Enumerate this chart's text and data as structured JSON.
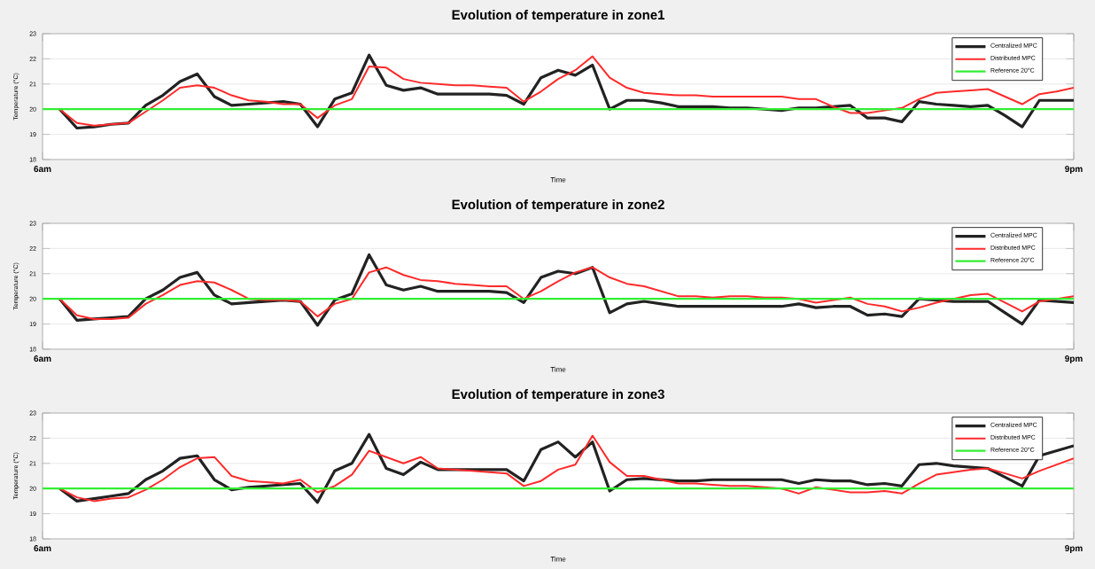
{
  "chart_data": [
    {
      "type": "line",
      "title": "Evolution of temperature in zone1",
      "xlabel": "Time",
      "ylabel": "Temperature (°C)",
      "ylim": [
        18,
        23
      ],
      "yticks": [
        18,
        19,
        20,
        21,
        22,
        23
      ],
      "grid": true,
      "legend": "top right",
      "marker": "none",
      "categories": [
        "6am",
        null,
        null,
        null,
        null,
        null,
        null,
        null,
        null,
        null,
        null,
        null,
        null,
        null,
        null,
        null,
        null,
        null,
        null,
        null,
        null,
        null,
        null,
        null,
        null,
        null,
        null,
        null,
        null,
        null,
        null,
        null,
        null,
        null,
        null,
        null,
        null,
        null,
        null,
        null,
        null,
        null,
        null,
        null,
        null,
        null,
        null,
        null,
        null,
        null,
        null,
        null,
        null,
        null,
        null,
        null,
        null,
        null,
        null,
        null,
        "9pm"
      ],
      "series": [
        {
          "name": "Centralized MPC",
          "color": "#222222",
          "values": [
            null,
            20,
            19.25,
            19.3,
            19.4,
            19.45,
            20.15,
            20.55,
            21.1,
            21.4,
            20.5,
            20.15,
            20.2,
            20.25,
            20.3,
            20.2,
            19.3,
            20.4,
            20.65,
            22.15,
            20.95,
            20.75,
            20.85,
            20.6,
            20.6,
            20.6,
            20.6,
            20.55,
            20.2,
            21.25,
            21.55,
            21.35,
            21.75,
            20,
            20.35,
            20.35,
            20.25,
            20.1,
            20.1,
            20.1,
            20.05,
            20.05,
            20,
            19.95,
            20.05,
            20.05,
            20.1,
            20.15,
            19.65,
            19.65,
            19.5,
            20.3,
            20.2,
            20.15,
            20.1,
            20.15,
            19.75,
            19.3,
            20.35,
            20.35,
            20.35
          ]
        },
        {
          "name": "Distributed MPC",
          "color": "#ff2a2a",
          "values": [
            null,
            20,
            19.45,
            19.35,
            19.4,
            19.45,
            19.9,
            20.35,
            20.85,
            20.95,
            20.85,
            20.55,
            20.35,
            20.3,
            20.2,
            20.2,
            19.65,
            20.15,
            20.4,
            21.7,
            21.65,
            21.2,
            21.05,
            21.0,
            20.95,
            20.95,
            20.9,
            20.85,
            20.3,
            20.7,
            21.2,
            21.55,
            22.1,
            21.25,
            20.85,
            20.65,
            20.6,
            20.55,
            20.55,
            20.5,
            20.5,
            20.5,
            20.5,
            20.5,
            20.4,
            20.4,
            20.1,
            19.85,
            19.85,
            19.95,
            20.05,
            20.4,
            20.65,
            20.7,
            20.75,
            20.8,
            20.5,
            20.2,
            20.6,
            20.7,
            20.85
          ]
        }
      ],
      "ref_lines": [
        {
          "axis": "y",
          "value": 20,
          "label": "Reference 20°C",
          "color": "#33ee33"
        }
      ]
    },
    {
      "type": "line",
      "title": "Evolution of temperature in zone2",
      "xlabel": "Time",
      "ylabel": "Temperature (°C)",
      "ylim": [
        18,
        23
      ],
      "yticks": [
        18,
        19,
        20,
        21,
        22,
        23
      ],
      "grid": true,
      "legend": "top right",
      "marker": "none",
      "categories": [
        "6am",
        null,
        null,
        null,
        null,
        null,
        null,
        null,
        null,
        null,
        null,
        null,
        null,
        null,
        null,
        null,
        null,
        null,
        null,
        null,
        null,
        null,
        null,
        null,
        null,
        null,
        null,
        null,
        null,
        null,
        null,
        null,
        null,
        null,
        null,
        null,
        null,
        null,
        null,
        null,
        null,
        null,
        null,
        null,
        null,
        null,
        null,
        null,
        null,
        null,
        null,
        null,
        null,
        null,
        null,
        null,
        null,
        null,
        null,
        null,
        "9pm"
      ],
      "series": [
        {
          "name": "Centralized MPC",
          "color": "#222222",
          "values": [
            null,
            20,
            19.15,
            19.2,
            19.25,
            19.3,
            20,
            20.35,
            20.85,
            21.05,
            20.15,
            19.8,
            19.85,
            19.9,
            19.95,
            19.9,
            18.95,
            19.95,
            20.2,
            21.75,
            20.55,
            20.35,
            20.5,
            20.3,
            20.3,
            20.3,
            20.3,
            20.25,
            19.85,
            20.85,
            21.1,
            21.0,
            21.25,
            19.45,
            19.8,
            19.9,
            19.8,
            19.7,
            19.7,
            19.7,
            19.7,
            19.7,
            19.7,
            19.7,
            19.8,
            19.65,
            19.7,
            19.7,
            19.35,
            19.4,
            19.3,
            20,
            19.95,
            19.9,
            19.9,
            19.9,
            19.45,
            19.0,
            19.95,
            19.9,
            19.85
          ]
        },
        {
          "name": "Distributed MPC",
          "color": "#ff2a2a",
          "values": [
            null,
            20,
            19.35,
            19.2,
            19.2,
            19.25,
            19.8,
            20.15,
            20.55,
            20.7,
            20.65,
            20.35,
            20,
            19.95,
            19.95,
            19.9,
            19.3,
            19.8,
            20,
            21.05,
            21.25,
            20.95,
            20.75,
            20.7,
            20.6,
            20.55,
            20.5,
            20.5,
            20,
            20.3,
            20.7,
            21.05,
            21.25,
            20.85,
            20.6,
            20.5,
            20.3,
            20.1,
            20.1,
            20.05,
            20.1,
            20.1,
            20.05,
            20.05,
            20,
            19.85,
            19.95,
            20.05,
            19.8,
            19.7,
            19.5,
            19.65,
            19.85,
            20,
            20.15,
            20.2,
            19.85,
            19.5,
            19.9,
            20,
            20.1
          ]
        }
      ],
      "ref_lines": [
        {
          "axis": "y",
          "value": 20,
          "label": "Reference 20°C",
          "color": "#33ee33"
        }
      ]
    },
    {
      "type": "line",
      "title": "Evolution of temperature in zone3",
      "xlabel": "Time",
      "ylabel": "Temperature (°C)",
      "ylim": [
        18,
        23
      ],
      "yticks": [
        18,
        19,
        20,
        21,
        22,
        23
      ],
      "grid": true,
      "legend": "top right",
      "marker": "none",
      "categories": [
        "6am",
        null,
        null,
        null,
        null,
        null,
        null,
        null,
        null,
        null,
        null,
        null,
        null,
        null,
        null,
        null,
        null,
        null,
        null,
        null,
        null,
        null,
        null,
        null,
        null,
        null,
        null,
        null,
        null,
        null,
        null,
        null,
        null,
        null,
        null,
        null,
        null,
        null,
        null,
        null,
        null,
        null,
        null,
        null,
        null,
        null,
        null,
        null,
        null,
        null,
        null,
        null,
        null,
        null,
        null,
        null,
        null,
        null,
        null,
        null,
        "9pm"
      ],
      "series": [
        {
          "name": "Centralized MPC",
          "color": "#222222",
          "values": [
            null,
            20,
            19.5,
            19.6,
            19.7,
            19.8,
            20.35,
            20.7,
            21.2,
            21.3,
            20.35,
            19.95,
            20.05,
            20.1,
            20.15,
            20.2,
            19.45,
            20.7,
            21.0,
            22.15,
            20.8,
            20.55,
            21.05,
            20.75,
            20.75,
            20.75,
            20.75,
            20.75,
            20.3,
            21.55,
            21.85,
            21.25,
            21.85,
            19.9,
            20.35,
            20.4,
            20.35,
            20.3,
            20.3,
            20.35,
            20.35,
            20.35,
            20.35,
            20.35,
            20.2,
            20.35,
            20.3,
            20.3,
            20.15,
            20.2,
            20.1,
            20.95,
            21.0,
            20.9,
            20.85,
            20.8,
            20.45,
            20.1,
            21.3,
            21.5,
            21.7
          ]
        },
        {
          "name": "Distributed MPC",
          "color": "#ff2a2a",
          "values": [
            null,
            20,
            19.65,
            19.5,
            19.6,
            19.65,
            19.95,
            20.35,
            20.85,
            21.2,
            21.25,
            20.5,
            20.3,
            20.25,
            20.2,
            20.35,
            19.85,
            20.1,
            20.55,
            21.5,
            21.25,
            21.0,
            21.25,
            20.8,
            20.75,
            20.7,
            20.65,
            20.6,
            20.1,
            20.3,
            20.75,
            20.95,
            22.1,
            21.05,
            20.5,
            20.5,
            20.35,
            20.2,
            20.2,
            20.15,
            20.1,
            20.1,
            20.05,
            20,
            19.8,
            20.05,
            19.95,
            19.85,
            19.85,
            19.9,
            19.8,
            20.2,
            20.55,
            20.65,
            20.75,
            20.8,
            20.6,
            20.4,
            20.7,
            20.95,
            21.2
          ]
        }
      ],
      "ref_lines": [
        {
          "axis": "y",
          "value": 20,
          "label": "Reference 20°C",
          "color": "#33ee33"
        }
      ]
    }
  ]
}
